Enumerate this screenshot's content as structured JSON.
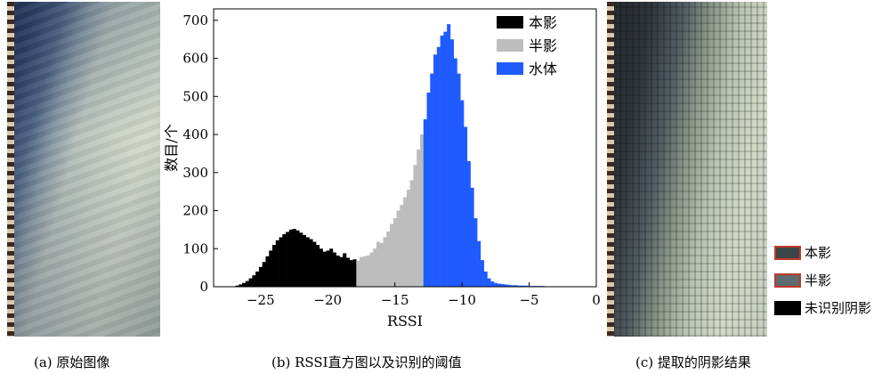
{
  "captions": {
    "a": "(a) 原始图像",
    "b": "(b) RSSI直方图以及识别的阈值",
    "c": "(c) 提取的阴影结果"
  },
  "panel_c_legend": [
    {
      "label": "本影",
      "color": "#3d444a",
      "border": "#c0392b"
    },
    {
      "label": "半影",
      "color": "#5e6b70",
      "border": "#c0392b"
    },
    {
      "label": "未识别阴影",
      "color": "#000000",
      "border": "#000000"
    }
  ],
  "chart_data": {
    "type": "bar",
    "xlabel": "RSSI",
    "ylabel": "数目/个",
    "xlim": [
      -28.5,
      0
    ],
    "ylim": [
      0,
      730
    ],
    "xticks": [
      -25,
      -20,
      -15,
      -10,
      -5,
      0
    ],
    "yticks": [
      0,
      100,
      200,
      300,
      400,
      500,
      600,
      700
    ],
    "bin_width": 0.25,
    "thresholds": [
      -17.75,
      -12.75
    ],
    "legend": {
      "position": "top-right"
    },
    "series": [
      {
        "name": "本影",
        "color": "#000000",
        "x": [
          -26.75,
          -26.5,
          -26.25,
          -26,
          -25.75,
          -25.5,
          -25.25,
          -25,
          -24.75,
          -24.5,
          -24.25,
          -24,
          -23.75,
          -23.5,
          -23.25,
          -23,
          -22.75,
          -22.5,
          -22.25,
          -22,
          -21.75,
          -21.5,
          -21.25,
          -21,
          -20.75,
          -20.5,
          -20.25,
          -20,
          -19.75,
          -19.5,
          -19.25,
          -19,
          -18.75,
          -18.5,
          -18.25,
          -18
        ],
        "values": [
          3,
          6,
          10,
          15,
          22,
          30,
          40,
          52,
          65,
          80,
          95,
          110,
          122,
          130,
          138,
          144,
          150,
          152,
          148,
          142,
          136,
          130,
          125,
          118,
          110,
          100,
          92,
          95,
          100,
          90,
          82,
          78,
          88,
          76,
          70,
          72
        ]
      },
      {
        "name": "半影",
        "color": "#bdbdbd",
        "x": [
          -17.75,
          -17.5,
          -17.25,
          -17,
          -16.75,
          -16.5,
          -16.25,
          -16,
          -15.75,
          -15.5,
          -15.25,
          -15,
          -14.75,
          -14.5,
          -14.25,
          -14,
          -13.75,
          -13.5,
          -13.25,
          -13
        ],
        "values": [
          68,
          78,
          80,
          82,
          90,
          100,
          118,
          115,
          130,
          145,
          165,
          180,
          200,
          215,
          235,
          255,
          280,
          320,
          360,
          400
        ]
      },
      {
        "name": "水体",
        "color": "#1f5bff",
        "x": [
          -12.75,
          -12.5,
          -12.25,
          -12,
          -11.75,
          -11.5,
          -11.25,
          -11,
          -10.75,
          -10.5,
          -10.25,
          -10,
          -9.75,
          -9.5,
          -9.25,
          -9,
          -8.75,
          -8.5,
          -8.25,
          -8,
          -7.75,
          -7.5,
          -7.25,
          -7,
          -6.75,
          -6.5,
          -6.25,
          -6,
          -5.75,
          -5.5,
          -5.25,
          -5,
          -4.75,
          -4.5,
          -4.25,
          -4,
          -3.75,
          -3.5,
          -3.25,
          -3,
          -2.75,
          -2.5,
          -2.25,
          -2,
          -1.75,
          -1.5,
          -1.25,
          -1
        ],
        "values": [
          440,
          510,
          560,
          610,
          630,
          660,
          670,
          690,
          650,
          600,
          560,
          490,
          420,
          330,
          260,
          180,
          120,
          70,
          40,
          22,
          14,
          10,
          8,
          7,
          6,
          5,
          4,
          4,
          3,
          3,
          3,
          2,
          2,
          2,
          2,
          2,
          1,
          1,
          1,
          1,
          1,
          1,
          1,
          1,
          1,
          1,
          1,
          1
        ]
      }
    ]
  }
}
